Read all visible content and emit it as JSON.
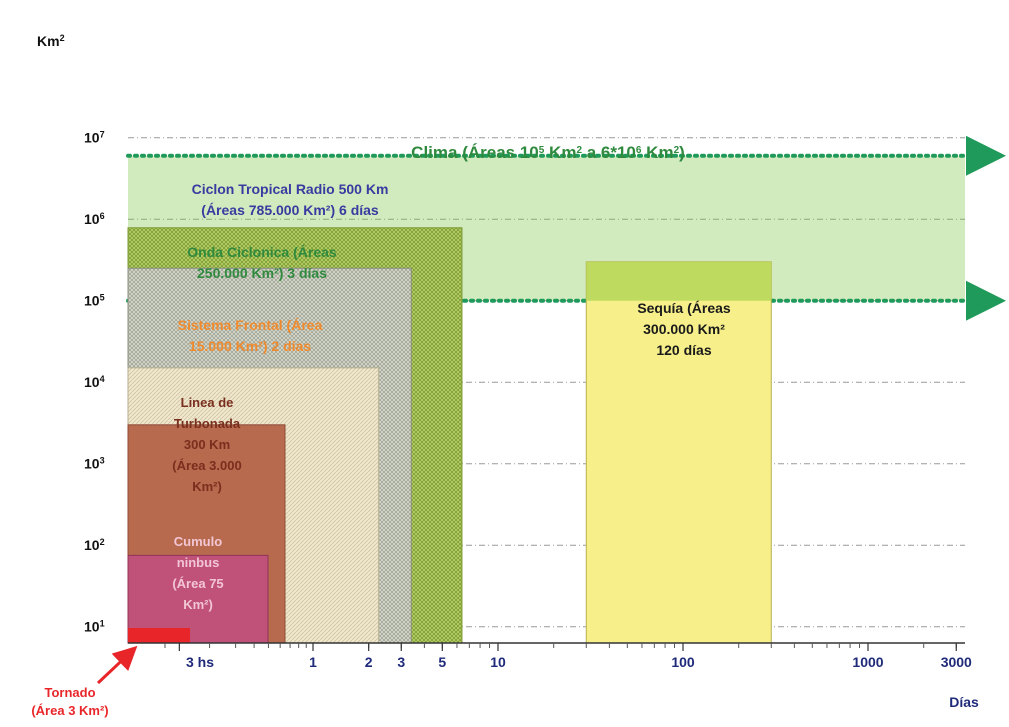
{
  "chart_data": {
    "type": "area",
    "x_scale": "log",
    "y_scale": "log",
    "ylabel": "Km²",
    "xlabel": "Días",
    "y_ticks": [
      {
        "value": 10,
        "base": "10",
        "exp": "1"
      },
      {
        "value": 100,
        "base": "10",
        "exp": "2"
      },
      {
        "value": 1000,
        "base": "10",
        "exp": "3"
      },
      {
        "value": 10000,
        "base": "10",
        "exp": "4"
      },
      {
        "value": 100000,
        "base": "10",
        "exp": "5"
      },
      {
        "value": 1000000,
        "base": "10",
        "exp": "6"
      },
      {
        "value": 10000000,
        "base": "10",
        "exp": "7"
      }
    ],
    "x_ticks": [
      {
        "value": 0.125,
        "label": "3 hs"
      },
      {
        "value": 1,
        "label": "1"
      },
      {
        "value": 2,
        "label": "2"
      },
      {
        "value": 3,
        "label": "3"
      },
      {
        "value": 5,
        "label": "5"
      },
      {
        "value": 10,
        "label": "10"
      },
      {
        "value": 100,
        "label": "100"
      },
      {
        "value": 1000,
        "label": "1000"
      },
      {
        "value": 3000,
        "label": "3000"
      }
    ],
    "band": {
      "name": "Clima",
      "y_range": [
        100000,
        6000000
      ],
      "label_parts": [
        "Clima (Áreas 10",
        "5",
        " Km",
        "2",
        " a 6*10",
        "6",
        " Km",
        "2",
        ")"
      ],
      "color": "#7cc444"
    },
    "phenomena": [
      {
        "name": "Ciclon Tropical",
        "area_km2": 785000,
        "days": 6,
        "lines": [
          "Ciclon Tropical Radio 500 Km",
          "(Áreas 785.000 Km²) 6 días"
        ],
        "fill": "#b9d46a",
        "text_color": "#3a3aa0"
      },
      {
        "name": "Onda Ciclonica",
        "area_km2": 250000,
        "days": 3,
        "lines": [
          "Onda Ciclonica (Áreas",
          "250.000 Km²) 3 días"
        ],
        "fill": "#cdd1c4",
        "text_color": "#2f8a3e"
      },
      {
        "name": "Sistema Frontal",
        "area_km2": 15000,
        "days": 2,
        "lines": [
          "Sistema Frontal (Área",
          "15.000 Km²) 2 días"
        ],
        "fill": "#ece3c8",
        "text_color": "#f08a2c"
      },
      {
        "name": "Linea de Turbonada",
        "area_km2": 3000,
        "days": 0.8,
        "lines": [
          "Linea de",
          "Turbonada",
          "300 Km",
          "(Área 3.000",
          "Km²)"
        ],
        "fill": "#b86a4e",
        "text_color": "#7a2e1e"
      },
      {
        "name": "Cumulo nimbus",
        "area_km2": 75,
        "days": 0.5,
        "lines": [
          "Cumulo",
          "ninbus",
          "(Área 75",
          "Km²)"
        ],
        "fill": "#c0527a",
        "text_color": "#f2c6d4"
      },
      {
        "name": "Tornado",
        "area_km2": 3,
        "days": 0.1,
        "lines": [
          "Tornado",
          "(Área 3 Km²)"
        ],
        "fill": "#e8262a",
        "text_color": "#e8262a"
      },
      {
        "name": "Sequia",
        "area_km2": 300000,
        "days_range": [
          30,
          300
        ],
        "lines": [
          "Sequía (Áreas",
          "300.000 Km²",
          "",
          "120 días"
        ],
        "fill": "#f6ef8a",
        "text_color": "#1a1a1a"
      }
    ]
  }
}
